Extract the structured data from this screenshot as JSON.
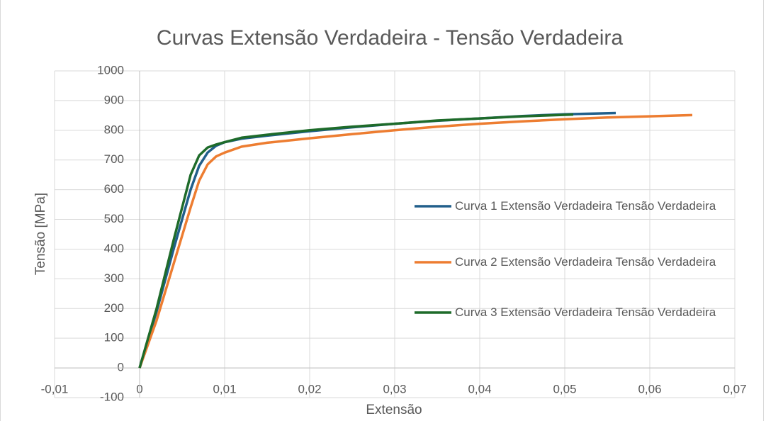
{
  "chart_data": {
    "type": "line",
    "title": "Curvas Extensão Verdadeira - Tensão Verdadeira",
    "xlabel": "Extensão",
    "ylabel": "Tensão [MPa]",
    "xlim": [
      -0.01,
      0.07
    ],
    "xticks": [
      {
        "value": -0.01,
        "label": "-0,01"
      },
      0,
      {
        "value": 0.01,
        "label": "0,01"
      },
      {
        "value": 0.02,
        "label": "0,02"
      },
      {
        "value": 0.03,
        "label": "0,03"
      },
      {
        "value": 0.04,
        "label": "0,04"
      },
      {
        "value": 0.05,
        "label": "0,05"
      },
      {
        "value": 0.06,
        "label": "0,06"
      },
      {
        "value": 0.07,
        "label": "0,07"
      }
    ],
    "ylim": [
      -100,
      1000
    ],
    "yticks": [
      -100,
      0,
      100,
      200,
      300,
      400,
      500,
      600,
      700,
      800,
      900,
      1000
    ],
    "grid": true,
    "legend": "right",
    "series": [
      {
        "name": "Curva 1 Extensão Verdadeira Tensão Verdadeira",
        "color": "#215f8b",
        "x": [
          0,
          0.002,
          0.004,
          0.006,
          0.007,
          0.008,
          0.009,
          0.01,
          0.012,
          0.015,
          0.02,
          0.025,
          0.03,
          0.035,
          0.04,
          0.045,
          0.05,
          0.056
        ],
        "values": [
          0,
          190,
          400,
          600,
          680,
          725,
          748,
          760,
          772,
          782,
          797,
          810,
          822,
          832,
          840,
          848,
          854,
          858
        ]
      },
      {
        "name": "Curva 2 Extensão Verdadeira Tensão Verdadeira",
        "color": "#ed7d31",
        "x": [
          0,
          0.002,
          0.004,
          0.006,
          0.007,
          0.008,
          0.009,
          0.01,
          0.012,
          0.015,
          0.02,
          0.025,
          0.03,
          0.035,
          0.04,
          0.045,
          0.05,
          0.055,
          0.06,
          0.065
        ],
        "values": [
          0,
          160,
          350,
          540,
          630,
          685,
          712,
          725,
          745,
          758,
          773,
          787,
          800,
          812,
          822,
          830,
          837,
          843,
          847,
          851
        ]
      },
      {
        "name": "Curva 3 Extensão Verdadeira Tensão Verdadeira",
        "color": "#1e6b2a",
        "x": [
          0,
          0.002,
          0.004,
          0.006,
          0.007,
          0.008,
          0.009,
          0.01,
          0.012,
          0.015,
          0.02,
          0.025,
          0.03,
          0.035,
          0.04,
          0.045,
          0.05,
          0.051
        ],
        "values": [
          0,
          200,
          430,
          650,
          715,
          742,
          752,
          760,
          775,
          785,
          800,
          812,
          822,
          833,
          840,
          847,
          852,
          853
        ]
      }
    ]
  }
}
